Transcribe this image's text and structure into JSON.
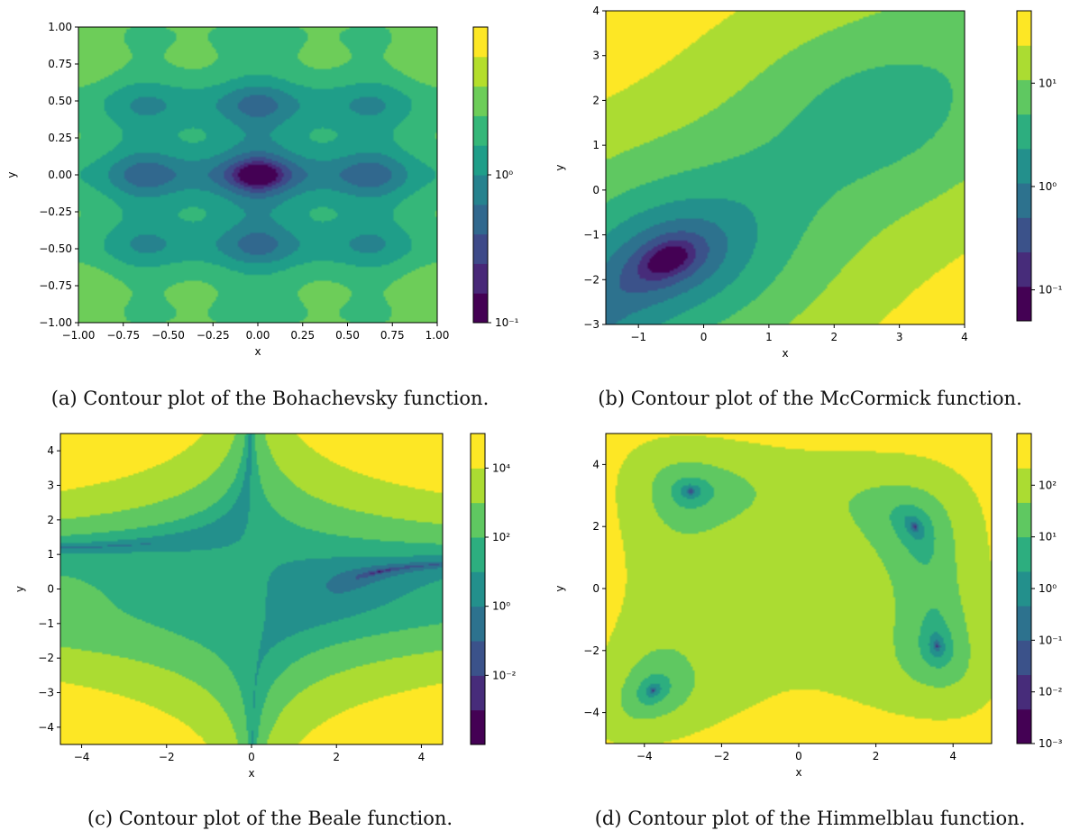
{
  "chart_data": [
    {
      "type": "contour",
      "function": "Bohachevsky",
      "caption": "(a) Contour plot of the Bohachevsky function.",
      "xlabel": "x",
      "ylabel": "y",
      "xlim": [
        -1.0,
        1.0
      ],
      "ylim": [
        -1.0,
        1.0
      ],
      "xticks": [
        "−1.00",
        "−0.75",
        "−0.50",
        "−0.25",
        "0.00",
        "0.25",
        "0.50",
        "0.75",
        "1.00"
      ],
      "yticks": [
        "−1.00",
        "−0.75",
        "−0.50",
        "−0.25",
        "0.00",
        "0.25",
        "0.50",
        "0.75",
        "1.00"
      ],
      "colorbar": {
        "scale": "log",
        "ticks": [
          "10⁻¹",
          "10⁰"
        ],
        "range_log10": [
          -1.0,
          1.0
        ],
        "levels": 10
      },
      "global_minimum": {
        "x": 0.0,
        "y": 0.0
      }
    },
    {
      "type": "contour",
      "function": "McCormick",
      "caption": "(b) Contour plot of the McCormick function.",
      "xlabel": "x",
      "ylabel": "y",
      "xlim": [
        -1.5,
        4.0
      ],
      "ylim": [
        -3.0,
        4.0
      ],
      "xticks": [
        "−1",
        "0",
        "1",
        "2",
        "3",
        "4"
      ],
      "yticks": [
        "−3",
        "−2",
        "−1",
        "0",
        "1",
        "2",
        "3",
        "4"
      ],
      "colorbar": {
        "scale": "log",
        "ticks": [
          "10⁻¹",
          "10⁰",
          "10¹"
        ],
        "range_log10": [
          -1.3,
          1.7
        ],
        "levels": 9
      },
      "global_minimum": {
        "x": -0.547,
        "y": -1.547
      }
    },
    {
      "type": "contour",
      "function": "Beale",
      "caption": "(c) Contour plot of the Beale function.",
      "xlabel": "x",
      "ylabel": "y",
      "xlim": [
        -4.5,
        4.5
      ],
      "ylim": [
        -4.5,
        4.5
      ],
      "xticks": [
        "−4",
        "−2",
        "0",
        "2",
        "4"
      ],
      "yticks": [
        "−4",
        "−3",
        "−2",
        "−1",
        "0",
        "1",
        "2",
        "3",
        "4"
      ],
      "colorbar": {
        "scale": "log",
        "ticks": [
          "10⁻²",
          "10⁰",
          "10²",
          "10⁴"
        ],
        "range_log10": [
          -4.0,
          5.0
        ],
        "levels": 9
      },
      "global_minimum": {
        "x": 3.0,
        "y": 0.5
      }
    },
    {
      "type": "contour",
      "function": "Himmelblau",
      "caption": "(d) Contour plot of the Himmelblau function.",
      "xlabel": "x",
      "ylabel": "y",
      "xlim": [
        -5.0,
        5.0
      ],
      "ylim": [
        -5.0,
        5.0
      ],
      "xticks": [
        "−4",
        "−2",
        "0",
        "2",
        "4"
      ],
      "yticks": [
        "−4",
        "−2",
        "0",
        "2",
        "4"
      ],
      "colorbar": {
        "scale": "log",
        "ticks": [
          "10⁻³",
          "10⁻²",
          "10⁻¹",
          "10⁰",
          "10¹",
          "10²"
        ],
        "range_log10": [
          -3.0,
          3.0
        ],
        "levels": 9
      },
      "minima": [
        {
          "x": 3.0,
          "y": 2.0
        },
        {
          "x": -2.805,
          "y": 3.131
        },
        {
          "x": -3.779,
          "y": -3.283
        },
        {
          "x": 3.584,
          "y": -1.848
        }
      ]
    }
  ]
}
